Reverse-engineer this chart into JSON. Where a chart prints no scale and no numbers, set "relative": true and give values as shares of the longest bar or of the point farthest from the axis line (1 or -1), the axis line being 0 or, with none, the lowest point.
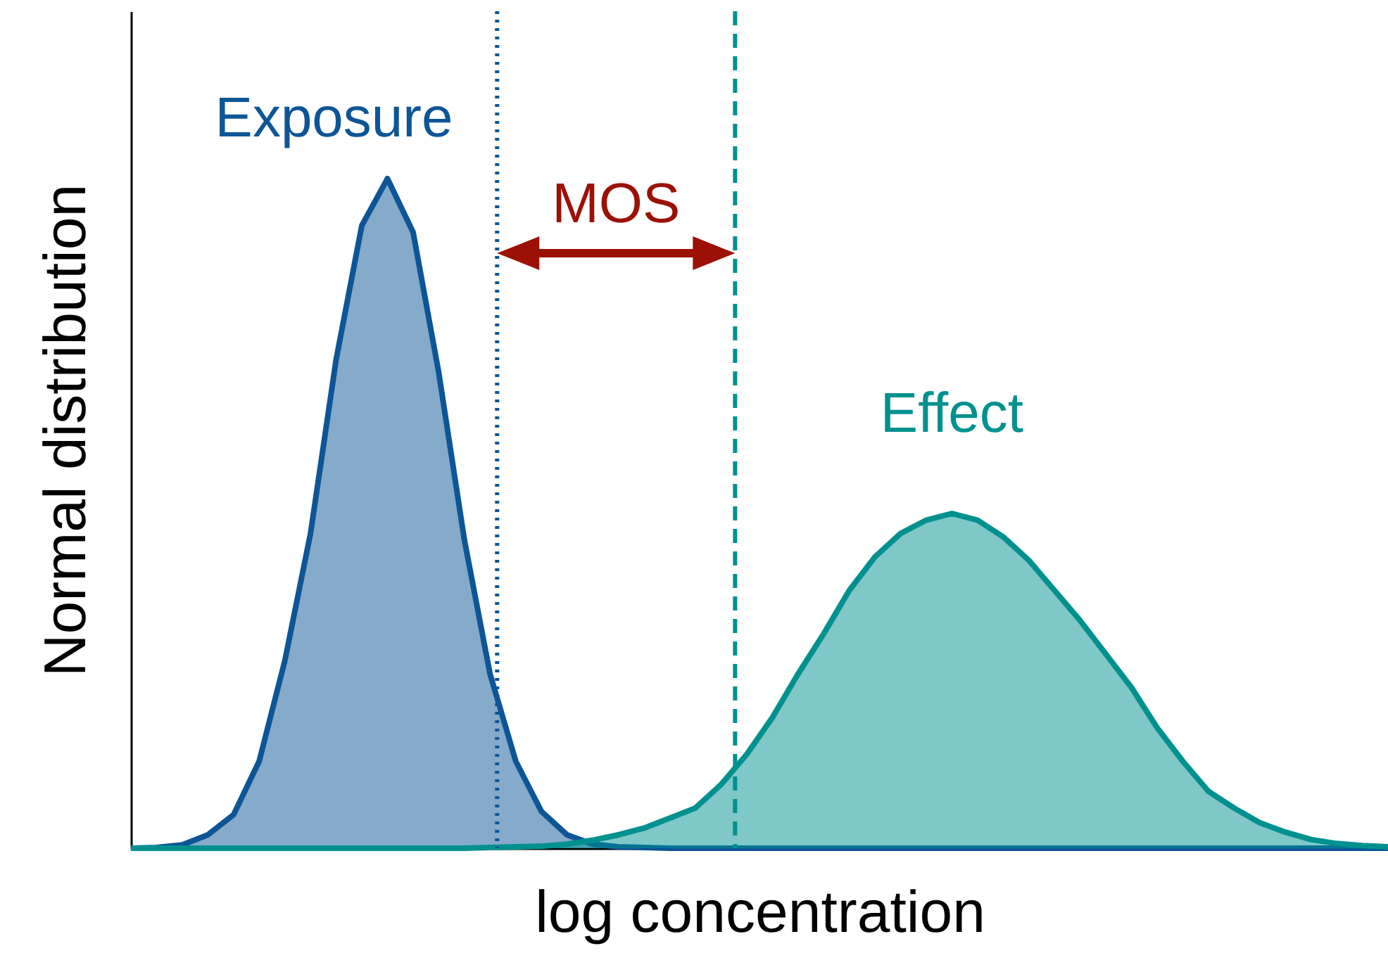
{
  "chart_data": {
    "type": "area",
    "relative": true,
    "xlabel": "log concentration",
    "ylabel": "Normal distribution",
    "annotations": [
      "MOS"
    ],
    "categories": [
      null,
      null,
      null,
      null,
      null,
      null,
      null,
      null,
      null,
      null,
      null,
      null,
      null,
      null,
      null,
      null,
      null,
      null,
      null,
      null,
      null,
      null,
      null,
      null,
      null,
      null,
      null,
      null,
      null,
      null,
      null,
      null,
      null,
      null,
      null,
      null,
      null,
      null,
      null,
      null,
      null,
      null,
      null,
      null,
      null,
      null,
      null,
      null,
      null,
      null
    ],
    "series": [
      {
        "name": "Exposure",
        "color": "#0d5596",
        "values": [
          0,
          0.001,
          0.005,
          0.02,
          0.05,
          0.13,
          0.28,
          0.47,
          0.73,
          0.93,
          1,
          0.92,
          0.71,
          0.46,
          0.26,
          0.13,
          0.055,
          0.02,
          0.006,
          0.002,
          0.001,
          0,
          0,
          0,
          0,
          0,
          0,
          0,
          0,
          0,
          0,
          0,
          0,
          0,
          0,
          0,
          0,
          0,
          0,
          0,
          0,
          0,
          0,
          0,
          0,
          0,
          0,
          0,
          0,
          0
        ]
      },
      {
        "name": "Effect",
        "color": "#00918f",
        "values": [
          0,
          0,
          0,
          0,
          0,
          0,
          0,
          0,
          0,
          0,
          0,
          0,
          0,
          0,
          0.001,
          0.002,
          0.003,
          0.006,
          0.012,
          0.02,
          0.03,
          0.045,
          0.06,
          0.095,
          0.14,
          0.195,
          0.26,
          0.32,
          0.385,
          0.435,
          0.47,
          0.49,
          0.5,
          0.49,
          0.465,
          0.43,
          0.385,
          0.34,
          0.29,
          0.24,
          0.18,
          0.13,
          0.085,
          0.06,
          0.038,
          0.024,
          0.013,
          0.007,
          0.004,
          0.002
        ]
      }
    ]
  }
}
